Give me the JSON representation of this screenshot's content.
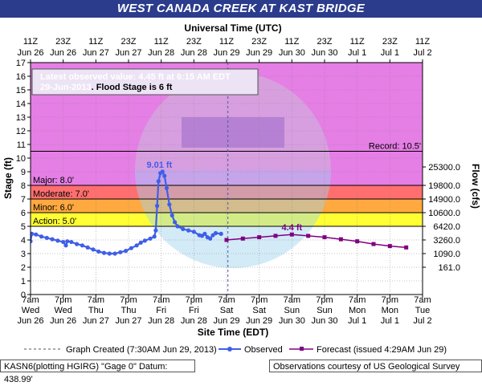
{
  "title": "WEST CANADA CREEK AT KAST BRIDGE",
  "top_axis_title": "Universal Time (UTC)",
  "bottom_axis_title": "Site Time (EDT)",
  "left_axis_title": "Stage (ft)",
  "right_axis_title": "Flow (cfs)",
  "info_box": {
    "line1_prefix": "Latest observed value: ",
    "line1_value": "4.45 ft at 6:15 AM EDT",
    "line2_date": "29-Jun-2013",
    "line2_suffix": ".  Flood Stage is 6 ft"
  },
  "legend": {
    "created": "Graph Created (7:30AM Jun 29, 2013)",
    "observed": "Observed",
    "forecast": "Forecast (issued 4:29AM Jun 29)"
  },
  "footer": {
    "left": "KASN6(plotting HGIRG) \"Gage 0\" Datum: 438.99'",
    "right": "Observations courtesy of US Geological Survey"
  },
  "colors": {
    "major": "#e57ee5",
    "moderate": "#ff6f6f",
    "minor": "#ffa940",
    "action": "#ffff33",
    "normal": "#ffffff",
    "observed": "#3f5fe8",
    "forecast": "#800080",
    "title_bg": "#2b3c8c"
  },
  "chart_data": {
    "type": "line",
    "x_unit": "hours after Jun 26 7am EDT",
    "xlim": [
      0,
      144
    ],
    "ylim": [
      0,
      17
    ],
    "yticks": [
      0,
      1,
      2,
      3,
      4,
      5,
      6,
      7,
      8,
      9,
      10,
      11,
      12,
      13,
      14,
      15,
      16,
      17
    ],
    "bottom_ticks": [
      {
        "x": 0,
        "l1": "7am",
        "l2": "Wed",
        "l3": "Jun 26"
      },
      {
        "x": 12,
        "l1": "7pm",
        "l2": "Wed",
        "l3": "Jun 26"
      },
      {
        "x": 24,
        "l1": "7am",
        "l2": "Thu",
        "l3": "Jun 27"
      },
      {
        "x": 36,
        "l1": "7pm",
        "l2": "Thu",
        "l3": "Jun 27"
      },
      {
        "x": 48,
        "l1": "7am",
        "l2": "Fri",
        "l3": "Jun 28"
      },
      {
        "x": 60,
        "l1": "7pm",
        "l2": "Fri",
        "l3": "Jun 28"
      },
      {
        "x": 72,
        "l1": "7am",
        "l2": "Sat",
        "l3": "Jun 29"
      },
      {
        "x": 84,
        "l1": "7pm",
        "l2": "Sat",
        "l3": "Jun 29"
      },
      {
        "x": 96,
        "l1": "7am",
        "l2": "Sun",
        "l3": "Jun 30"
      },
      {
        "x": 108,
        "l1": "7pm",
        "l2": "Sun",
        "l3": "Jun 30"
      },
      {
        "x": 120,
        "l1": "7am",
        "l2": "Mon",
        "l3": "Jul 1"
      },
      {
        "x": 132,
        "l1": "7pm",
        "l2": "Mon",
        "l3": "Jul 1"
      },
      {
        "x": 144,
        "l1": "7am",
        "l2": "Tue",
        "l3": "Jul 2"
      }
    ],
    "top_ticks": [
      {
        "x": 0,
        "l1": "11Z",
        "l2": "Jun 26"
      },
      {
        "x": 12,
        "l1": "23Z",
        "l2": "Jun 26"
      },
      {
        "x": 24,
        "l1": "11Z",
        "l2": "Jun 27"
      },
      {
        "x": 36,
        "l1": "23Z",
        "l2": "Jun 27"
      },
      {
        "x": 48,
        "l1": "11Z",
        "l2": "Jun 28"
      },
      {
        "x": 60,
        "l1": "23Z",
        "l2": "Jun 28"
      },
      {
        "x": 72,
        "l1": "11Z",
        "l2": "Jun 29"
      },
      {
        "x": 84,
        "l1": "23Z",
        "l2": "Jun 29"
      },
      {
        "x": 96,
        "l1": "11Z",
        "l2": "Jun 30"
      },
      {
        "x": 108,
        "l1": "23Z",
        "l2": "Jun 30"
      },
      {
        "x": 120,
        "l1": "11Z",
        "l2": "Jul 1"
      },
      {
        "x": 132,
        "l1": "23Z",
        "l2": "Jul 1"
      },
      {
        "x": 144,
        "l1": "11Z",
        "l2": "Jul 2"
      }
    ],
    "flow_ticks": [
      {
        "y": 9.35,
        "label": "25300.0"
      },
      {
        "y": 8.0,
        "label": "19800.0"
      },
      {
        "y": 7.0,
        "label": "14900.0"
      },
      {
        "y": 6.0,
        "label": "10600.0"
      },
      {
        "y": 5.0,
        "label": "6420.0"
      },
      {
        "y": 4.0,
        "label": "3260.0"
      },
      {
        "y": 3.0,
        "label": "1090.0"
      },
      {
        "y": 2.0,
        "label": "161.0"
      }
    ],
    "bands": [
      {
        "name": "major",
        "from": 8,
        "to": 17
      },
      {
        "name": "moderate",
        "from": 7,
        "to": 8
      },
      {
        "name": "minor",
        "from": 6,
        "to": 7
      },
      {
        "name": "action",
        "from": 5,
        "to": 6
      },
      {
        "name": "normal",
        "from": 0,
        "to": 5
      }
    ],
    "stage_lines": [
      {
        "y": 10.5,
        "label": "Record: 10.5'",
        "side": "right"
      },
      {
        "y": 8.0,
        "label": "Major: 8.0'",
        "side": "left"
      },
      {
        "y": 7.0,
        "label": "Moderate: 7.0'",
        "side": "left"
      },
      {
        "y": 6.0,
        "label": "Minor: 6.0'",
        "side": "left"
      },
      {
        "y": 5.0,
        "label": "Action: 5.0'",
        "side": "left"
      }
    ],
    "graph_created_x": 72.5,
    "peak": {
      "x": 48.5,
      "y": 9.01,
      "label": "9.01 ft"
    },
    "forecast_peak": {
      "x": 96,
      "y": 4.4,
      "label": "4.4 ft"
    },
    "observed": [
      [
        0,
        3.9
      ],
      [
        0.5,
        4.45
      ],
      [
        2,
        4.4
      ],
      [
        4,
        4.25
      ],
      [
        6,
        4.15
      ],
      [
        8,
        4.05
      ],
      [
        10,
        3.95
      ],
      [
        12,
        3.85
      ],
      [
        13,
        3.6
      ],
      [
        13.5,
        3.9
      ],
      [
        15,
        3.85
      ],
      [
        17,
        3.7
      ],
      [
        19,
        3.6
      ],
      [
        21,
        3.45
      ],
      [
        23,
        3.3
      ],
      [
        25,
        3.15
      ],
      [
        27,
        3.05
      ],
      [
        29,
        3.0
      ],
      [
        31,
        3.0
      ],
      [
        33,
        3.1
      ],
      [
        35,
        3.2
      ],
      [
        37,
        3.4
      ],
      [
        39,
        3.6
      ],
      [
        40.5,
        3.8
      ],
      [
        42,
        3.95
      ],
      [
        44,
        4.1
      ],
      [
        45.5,
        4.25
      ],
      [
        46,
        4.7
      ],
      [
        46.5,
        6.5
      ],
      [
        47,
        8.3
      ],
      [
        47.7,
        8.9
      ],
      [
        48.5,
        9.01
      ],
      [
        49.2,
        8.7
      ],
      [
        50,
        7.8
      ],
      [
        51,
        6.6
      ],
      [
        52,
        5.8
      ],
      [
        53,
        5.3
      ],
      [
        54,
        5.0
      ],
      [
        56,
        4.8
      ],
      [
        58,
        4.7
      ],
      [
        60,
        4.6
      ],
      [
        62,
        4.35
      ],
      [
        63,
        4.3
      ],
      [
        64,
        4.45
      ],
      [
        65,
        4.2
      ],
      [
        66,
        4.1
      ],
      [
        67,
        4.35
      ],
      [
        68,
        4.5
      ],
      [
        70,
        4.45
      ]
    ],
    "forecast": [
      [
        72,
        4.0
      ],
      [
        78,
        4.1
      ],
      [
        84,
        4.2
      ],
      [
        90,
        4.3
      ],
      [
        96,
        4.4
      ],
      [
        102,
        4.3
      ],
      [
        108,
        4.2
      ],
      [
        114,
        4.05
      ],
      [
        120,
        3.9
      ],
      [
        126,
        3.7
      ],
      [
        132,
        3.55
      ],
      [
        138,
        3.45
      ]
    ]
  }
}
